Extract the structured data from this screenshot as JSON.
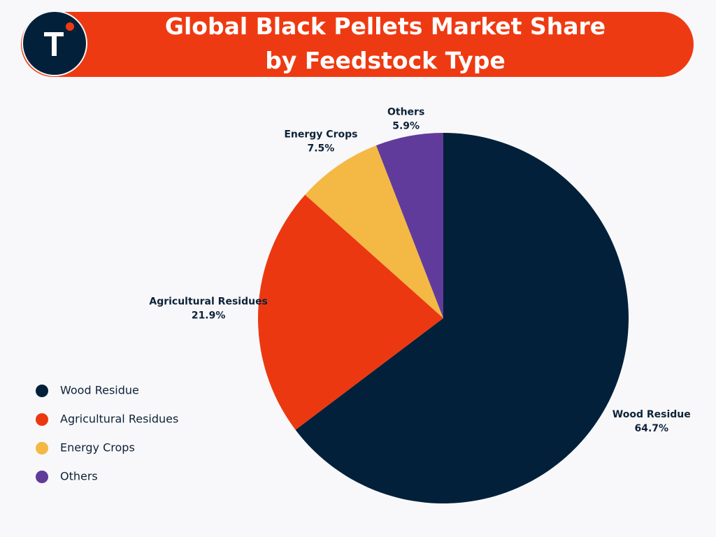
{
  "chart_data": {
    "type": "pie",
    "title": "Global Black Pellets Market Share by Feedstock Type",
    "categories": [
      "Wood Residue",
      "Agricultural Residues",
      "Energy Crops",
      "Others"
    ],
    "values": [
      64.7,
      21.9,
      7.5,
      5.9
    ],
    "value_labels": [
      "64.7%",
      "21.9%",
      "7.5%",
      "5.9%"
    ],
    "colors": [
      "#02203a",
      "#ec3811",
      "#f3b944",
      "#613b9b"
    ],
    "legend": "left"
  }
}
